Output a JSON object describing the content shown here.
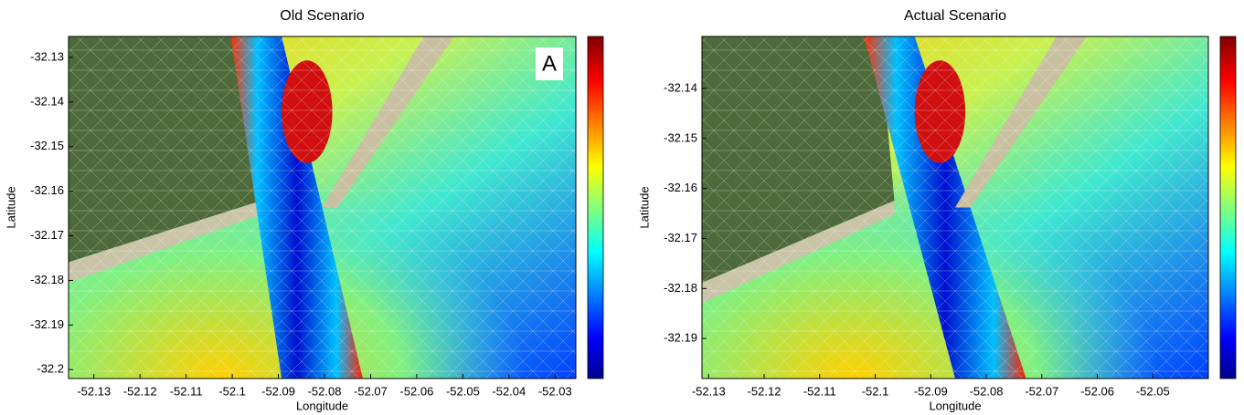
{
  "chart_data": [
    {
      "type": "map",
      "title": "Old Scenario",
      "xlabel": "Longitude",
      "ylabel": "Latitude",
      "annotation": "A",
      "xlim": [
        -52.1355,
        -52.0255
      ],
      "ylim": [
        -32.202,
        -32.1253
      ],
      "xticks": [
        -52.13,
        -52.12,
        -52.11,
        -52.1,
        -52.09,
        -52.08,
        -52.07,
        -52.06,
        -52.05,
        -52.04,
        -52.03
      ],
      "yticks": [
        -32.13,
        -32.14,
        -32.15,
        -32.16,
        -32.17,
        -32.18,
        -32.19,
        -32.2
      ]
    },
    {
      "type": "map",
      "title": "Actual Scenario",
      "xlabel": "Longitude",
      "ylabel": "Latitude",
      "xlim": [
        -52.1312,
        -52.04
      ],
      "ylim": [
        -32.198,
        -32.1296
      ],
      "xticks": [
        -52.13,
        -52.12,
        -52.11,
        -52.1,
        -52.09,
        -52.08,
        -52.07,
        -52.06,
        -52.05
      ],
      "yticks": [
        -32.14,
        -32.15,
        -32.16,
        -32.17,
        -32.18,
        -32.19
      ]
    }
  ]
}
